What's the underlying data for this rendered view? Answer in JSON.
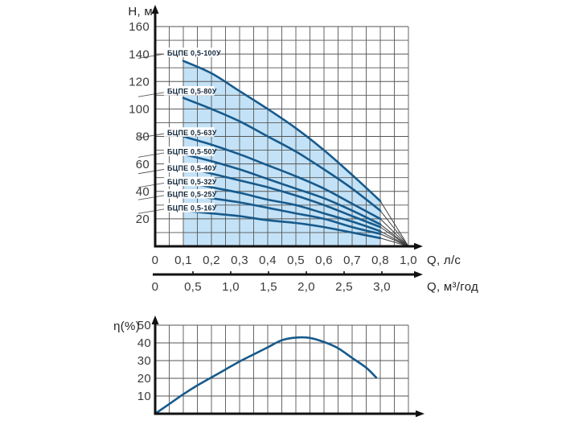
{
  "colors": {
    "curve": "#175a8c",
    "fill": "#c3e2f7",
    "grid": "#565656",
    "axis": "#111111",
    "tick_text": "#3a3a3a",
    "label_text": "#13283c",
    "fan_line": "#3f3f3f",
    "leader_line": "#5a5a5a",
    "background": "#ffffff"
  },
  "top_chart": {
    "y_axis_title": "Н, м",
    "x_axis_title": "Q, л/с",
    "x2_axis_title": "Q, м³/год",
    "y_tick_labels": [
      "160",
      "140",
      "120",
      "100",
      "80",
      "60",
      "40",
      "20"
    ],
    "x_tick_labels": [
      "0",
      "0,1",
      "0,2",
      "0,3",
      "0,4",
      "0,5",
      "0,6",
      "0,7",
      "0,8",
      "1,0"
    ],
    "x2_tick_labels": [
      "0",
      "0,5",
      "1,0",
      "1,5",
      "2,0",
      "2,5",
      "3,0"
    ]
  },
  "bottom_chart": {
    "y_axis_title": "η(%)",
    "y_tick_labels": [
      "50",
      "40",
      "30",
      "20",
      "10"
    ]
  },
  "chart_data": [
    {
      "type": "line",
      "title": "БЦПЕ 0,5 submersible pump head curves",
      "xlabel": "Q, л/с",
      "x2label": "Q, м³/год",
      "ylabel": "Н, м",
      "xlim": [
        0,
        1.0
      ],
      "ylim": [
        0,
        160
      ],
      "grid": true,
      "legend_position": "inline-labels",
      "x": [
        0.1,
        0.2,
        0.3,
        0.4,
        0.5,
        0.6,
        0.7,
        0.8,
        1.0
      ],
      "series": [
        {
          "name": "БЦПЕ 0,5-100У",
          "label_h": 141,
          "values": [
            135,
            126,
            113,
            100,
            86,
            70,
            52,
            33,
            0
          ]
        },
        {
          "name": "БЦПЕ 0,5-80У",
          "label_h": 113,
          "values": [
            108,
            100,
            91,
            80,
            69,
            56,
            42,
            26,
            0
          ]
        },
        {
          "name": "БЦПЕ 0,5-63У",
          "label_h": 83,
          "values": [
            80,
            74,
            67,
            59,
            51,
            42,
            31,
            20,
            0
          ]
        },
        {
          "name": "БЦПЕ 0,5-50У",
          "label_h": 69,
          "values": [
            67,
            62,
            56,
            49,
            42,
            35,
            26,
            16,
            0
          ]
        },
        {
          "name": "БЦПЕ 0,5-40У",
          "label_h": 57,
          "values": [
            58,
            53,
            48,
            43,
            37,
            30,
            22,
            14,
            0
          ]
        },
        {
          "name": "БЦПЕ 0,5-32У",
          "label_h": 47,
          "values": [
            47,
            43,
            39,
            34,
            30,
            24,
            18,
            11,
            0
          ]
        },
        {
          "name": "БЦПЕ 0,5-25У",
          "label_h": 38,
          "values": [
            38,
            35,
            32,
            28,
            24,
            20,
            14,
            9,
            0
          ]
        },
        {
          "name": "БЦПЕ 0,5-16У",
          "label_h": 28,
          "values": [
            26,
            24,
            22,
            19,
            17,
            14,
            10,
            6,
            0
          ]
        }
      ],
      "shaded_region": "between Q=0,1 and Q=0,8 under the БЦПЕ 0,5-100У curve",
      "x2_ticks": [
        0,
        0.5,
        1.0,
        1.5,
        2.0,
        2.5,
        3.0
      ]
    },
    {
      "type": "line",
      "title": "Efficiency curve",
      "ylabel": "η(%)",
      "ylim": [
        0,
        50
      ],
      "grid": true,
      "x": [
        0,
        0.05,
        0.1,
        0.15,
        0.2,
        0.25,
        0.3,
        0.35,
        0.4,
        0.45,
        0.5,
        0.55,
        0.6,
        0.65,
        0.7,
        0.75,
        0.785
      ],
      "values": [
        0,
        5.5,
        11,
        16,
        20.5,
        25,
        29.5,
        33.5,
        37.5,
        41.5,
        43,
        42.8,
        40.5,
        37,
        31.5,
        26,
        20.5
      ]
    }
  ]
}
